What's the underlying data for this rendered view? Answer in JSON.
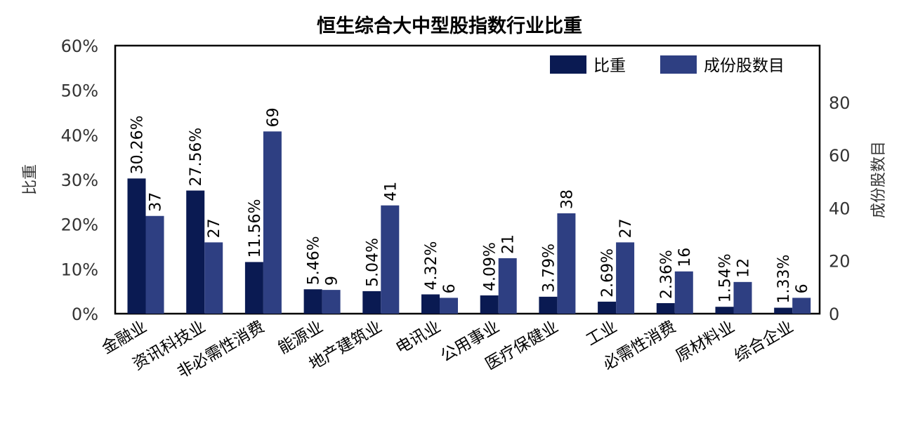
{
  "chart_data": {
    "type": "bar",
    "title": "恒生综合大中型股指数行业比重",
    "categories": [
      "金融业",
      "资讯科技业",
      "非必需性消费",
      "能源业",
      "地产建筑业",
      "电讯业",
      "公用事业",
      "医疗保健业",
      "工业",
      "必需性消费",
      "原材料业",
      "综合企业"
    ],
    "series": [
      {
        "name": "比重",
        "axis": "left",
        "color": "#0a1a52",
        "values": [
          30.26,
          27.56,
          11.56,
          5.46,
          5.04,
          4.32,
          4.09,
          3.79,
          2.69,
          2.36,
          1.54,
          1.33
        ],
        "labels": [
          "30.26%",
          "27.56%",
          "11.56%",
          "5.46%",
          "5.04%",
          "4.32%",
          "4.09%",
          "3.79%",
          "2.69%",
          "2.36%",
          "1.54%",
          "1.33%"
        ]
      },
      {
        "name": "成份股数目",
        "axis": "right",
        "color": "#2e3f82",
        "values": [
          37,
          27,
          69,
          9,
          41,
          6,
          21,
          38,
          27,
          16,
          12,
          6
        ],
        "labels": [
          "37",
          "27",
          "69",
          "9",
          "41",
          "6",
          "21",
          "38",
          "27",
          "16",
          "12",
          "6"
        ]
      }
    ],
    "ylabel": "比重",
    "ylim": [
      0,
      60
    ],
    "yticks": [
      "0%",
      "10%",
      "20%",
      "30%",
      "40%",
      "50%",
      "60%"
    ],
    "y2label": "成份股数目",
    "y2lim": [
      0,
      101.5
    ],
    "y2ticks": [
      "0",
      "20",
      "40",
      "60",
      "80"
    ],
    "legend_position": "top-right",
    "grid": false
  }
}
